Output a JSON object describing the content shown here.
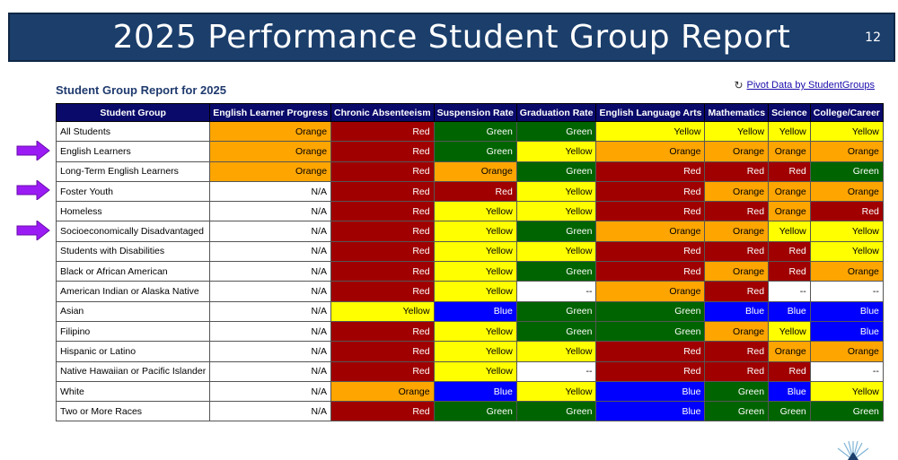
{
  "header": {
    "title": "2025 Performance Student Group Report",
    "page_number": "12"
  },
  "report": {
    "title": "Student Group Report for 2025",
    "pivot_link": "Pivot Data by StudentGroups",
    "pivot_icon": "↻"
  },
  "colors": {
    "Orange": "#ffa500",
    "Red": "#a00000",
    "Green": "#006400",
    "Yellow": "#ffff00",
    "Blue": "#0000ff",
    "header_bg": "#0a0a6b",
    "title_bar": "#1b3e6b",
    "arrow": "#9b1bf5"
  },
  "table": {
    "headers": [
      "Student Group",
      "English Learner Progress",
      "Chronic Absenteeism",
      "Suspension Rate",
      "Graduation Rate",
      "English Language Arts",
      "Mathematics",
      "Science",
      "College/Career"
    ],
    "rows": [
      [
        "All Students",
        "Orange",
        "Red",
        "Green",
        "Green",
        "Yellow",
        "Yellow",
        "Yellow",
        "Yellow"
      ],
      [
        "English Learners",
        "Orange",
        "Red",
        "Green",
        "Yellow",
        "Orange",
        "Orange",
        "Orange",
        "Orange"
      ],
      [
        "Long-Term English Learners",
        "Orange",
        "Red",
        "Orange",
        "Green",
        "Red",
        "Red",
        "Red",
        "Green"
      ],
      [
        "Foster Youth",
        "N/A",
        "Red",
        "Red",
        "Yellow",
        "Red",
        "Orange",
        "Orange",
        "Orange"
      ],
      [
        "Homeless",
        "N/A",
        "Red",
        "Yellow",
        "Yellow",
        "Red",
        "Red",
        "Orange",
        "Red"
      ],
      [
        "Socioeconomically Disadvantaged",
        "N/A",
        "Red",
        "Yellow",
        "Green",
        "Orange",
        "Orange",
        "Yellow",
        "Yellow"
      ],
      [
        "Students with Disabilities",
        "N/A",
        "Red",
        "Yellow",
        "Yellow",
        "Red",
        "Red",
        "Red",
        "Yellow"
      ],
      [
        "Black or African American",
        "N/A",
        "Red",
        "Yellow",
        "Green",
        "Red",
        "Orange",
        "Red",
        "Orange"
      ],
      [
        "American Indian or Alaska Native",
        "N/A",
        "Red",
        "Yellow",
        "--",
        "Orange",
        "Red",
        "--",
        "--"
      ],
      [
        "Asian",
        "N/A",
        "Yellow",
        "Blue",
        "Green",
        "Green",
        "Blue",
        "Blue",
        "Blue"
      ],
      [
        "Filipino",
        "N/A",
        "Red",
        "Yellow",
        "Green",
        "Green",
        "Orange",
        "Yellow",
        "Blue"
      ],
      [
        "Hispanic or Latino",
        "N/A",
        "Red",
        "Yellow",
        "Yellow",
        "Red",
        "Red",
        "Orange",
        "Orange"
      ],
      [
        "Native Hawaiian or Pacific Islander",
        "N/A",
        "Red",
        "Yellow",
        "--",
        "Red",
        "Red",
        "Red",
        "--"
      ],
      [
        "White",
        "N/A",
        "Orange",
        "Blue",
        "Yellow",
        "Blue",
        "Green",
        "Blue",
        "Yellow"
      ],
      [
        "Two or More Races",
        "N/A",
        "Red",
        "Green",
        "Green",
        "Blue",
        "Green",
        "Green",
        "Green"
      ]
    ]
  },
  "arrows": {
    "highlighted_groups": [
      "English Learners",
      "Foster Youth",
      "Socioeconomically Disadvantaged"
    ]
  }
}
